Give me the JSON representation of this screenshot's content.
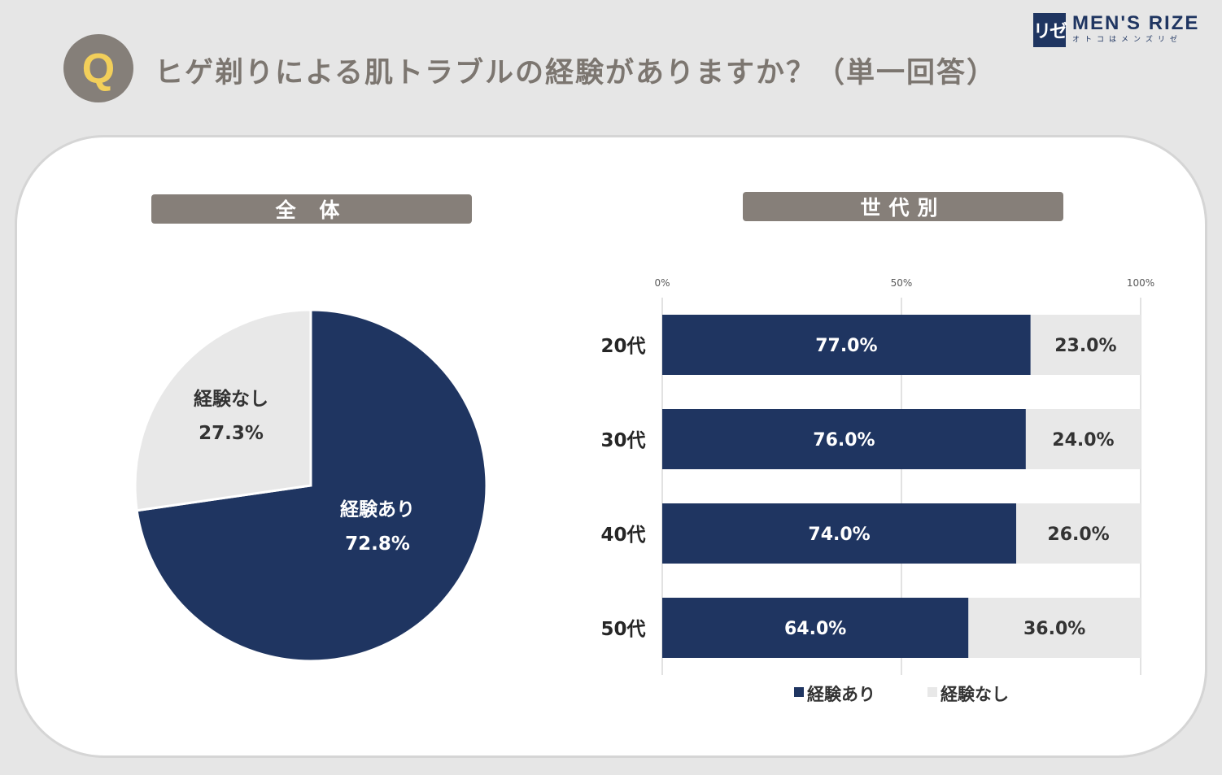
{
  "header": {
    "q_letter": "Q",
    "question": "ヒゲ剃りによる肌トラブルの経験がありますか？（単一回答）",
    "logo_mark": "リゼ",
    "logo_title": "MEN'S RIZE",
    "logo_sub": "オトコはメンズリゼ"
  },
  "labels": {
    "overall": "全 体",
    "by_age": "世代別"
  },
  "colors": {
    "navy": "#1f3561",
    "light": "#e8e8e8",
    "label_bg": "#867f79"
  },
  "chart_data": [
    {
      "type": "pie",
      "title": "全 体",
      "slices": [
        {
          "label": "経験あり",
          "value": 72.8,
          "display": "72.8%",
          "color": "#1f3561"
        },
        {
          "label": "経験なし",
          "value": 27.3,
          "display": "27.3%",
          "color": "#e8e8e8"
        }
      ]
    },
    {
      "type": "bar",
      "orientation": "horizontal",
      "stacked": "100%",
      "title": "世代別",
      "categories": [
        "20代",
        "30代",
        "40代",
        "50代"
      ],
      "series": [
        {
          "name": "経験あり",
          "values": [
            77.0,
            76.0,
            74.0,
            64.0
          ],
          "display": [
            "77.0%",
            "76.0%",
            "74.0%",
            "64.0%"
          ],
          "color": "#1f3561"
        },
        {
          "name": "経験なし",
          "values": [
            23.0,
            24.0,
            26.0,
            36.0
          ],
          "display": [
            "23.0%",
            "24.0%",
            "26.0%",
            "36.0%"
          ],
          "color": "#e8e8e8"
        }
      ],
      "xlim": [
        0,
        100
      ],
      "ticks": [
        0,
        50,
        100
      ],
      "tick_labels": [
        "0%",
        "50%",
        "100%"
      ],
      "grid": true,
      "legend": "bottom"
    }
  ]
}
